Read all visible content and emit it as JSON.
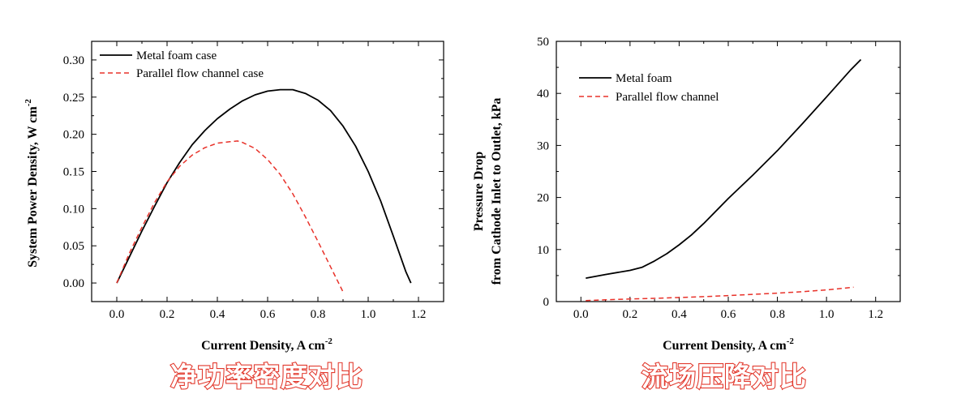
{
  "chart_data": [
    {
      "type": "line",
      "title": "",
      "xlabel": "Current Density, A cm",
      "xlabel_sup": "-2",
      "ylabel": "System Power Density, W cm",
      "ylabel_sup": "-2",
      "xlim": [
        -0.1,
        1.3
      ],
      "ylim": [
        -0.025,
        0.325
      ],
      "xticks": [
        "0.0",
        "0.2",
        "0.4",
        "0.6",
        "0.8",
        "1.0",
        "1.2"
      ],
      "yticks": [
        "0.00",
        "0.05",
        "0.10",
        "0.15",
        "0.20",
        "0.25",
        "0.30"
      ],
      "xtick_values": [
        0,
        0.2,
        0.4,
        0.6,
        0.8,
        1.0,
        1.2
      ],
      "ytick_values": [
        0,
        0.05,
        0.1,
        0.15,
        0.2,
        0.25,
        0.3
      ],
      "legend_position": "top-left",
      "caption": "净功率密度对比",
      "series": [
        {
          "name": "Metal foam case",
          "color": "#000000",
          "style": "solid",
          "x": [
            0,
            0.05,
            0.1,
            0.15,
            0.2,
            0.25,
            0.3,
            0.35,
            0.4,
            0.45,
            0.5,
            0.55,
            0.6,
            0.65,
            0.7,
            0.75,
            0.8,
            0.85,
            0.9,
            0.95,
            1.0,
            1.05,
            1.1,
            1.15,
            1.17
          ],
          "y": [
            0,
            0.035,
            0.07,
            0.103,
            0.135,
            0.162,
            0.186,
            0.205,
            0.221,
            0.234,
            0.245,
            0.253,
            0.258,
            0.26,
            0.26,
            0.255,
            0.246,
            0.232,
            0.211,
            0.184,
            0.15,
            0.11,
            0.063,
            0.015,
            0
          ]
        },
        {
          "name": "Parallel flow channel case",
          "color": "#e8322a",
          "style": "dashed",
          "x": [
            0,
            0.05,
            0.1,
            0.15,
            0.2,
            0.25,
            0.3,
            0.35,
            0.4,
            0.45,
            0.48,
            0.5,
            0.55,
            0.6,
            0.65,
            0.7,
            0.75,
            0.8,
            0.85,
            0.9
          ],
          "y": [
            0,
            0.04,
            0.075,
            0.108,
            0.136,
            0.157,
            0.172,
            0.182,
            0.188,
            0.19,
            0.191,
            0.189,
            0.181,
            0.166,
            0.146,
            0.12,
            0.089,
            0.056,
            0.022,
            -0.012
          ]
        }
      ]
    },
    {
      "type": "line",
      "title": "",
      "xlabel": "Current Density, A cm",
      "xlabel_sup": "-2",
      "ylabel_lines": [
        "Pressure Drop",
        "from Cathode Inlet to Outlet, kPa"
      ],
      "xlim": [
        -0.1,
        1.3
      ],
      "ylim": [
        0,
        50
      ],
      "xticks": [
        "0.0",
        "0.2",
        "0.4",
        "0.6",
        "0.8",
        "1.0",
        "1.2"
      ],
      "yticks": [
        "0",
        "10",
        "20",
        "30",
        "40",
        "50"
      ],
      "xtick_values": [
        0,
        0.2,
        0.4,
        0.6,
        0.8,
        1.0,
        1.2
      ],
      "ytick_values": [
        0,
        10,
        20,
        30,
        40,
        50
      ],
      "legend_position": "top-left",
      "caption": "流场压降对比",
      "series": [
        {
          "name": "Metal foam",
          "color": "#000000",
          "style": "solid",
          "x": [
            0.02,
            0.1,
            0.2,
            0.25,
            0.3,
            0.35,
            0.4,
            0.45,
            0.5,
            0.6,
            0.7,
            0.8,
            0.9,
            1.0,
            1.1,
            1.14
          ],
          "y": [
            4.5,
            5.2,
            6.0,
            6.6,
            7.8,
            9.2,
            10.9,
            12.8,
            15.0,
            19.8,
            24.3,
            29.0,
            34.1,
            39.3,
            44.6,
            46.5
          ]
        },
        {
          "name": "Parallel flow channel",
          "color": "#e8322a",
          "style": "dashed",
          "x": [
            0.02,
            0.1,
            0.2,
            0.3,
            0.4,
            0.5,
            0.6,
            0.7,
            0.8,
            0.9,
            1.0,
            1.11
          ],
          "y": [
            0.2,
            0.35,
            0.5,
            0.62,
            0.78,
            0.95,
            1.15,
            1.38,
            1.62,
            1.9,
            2.25,
            2.75
          ]
        }
      ]
    }
  ]
}
